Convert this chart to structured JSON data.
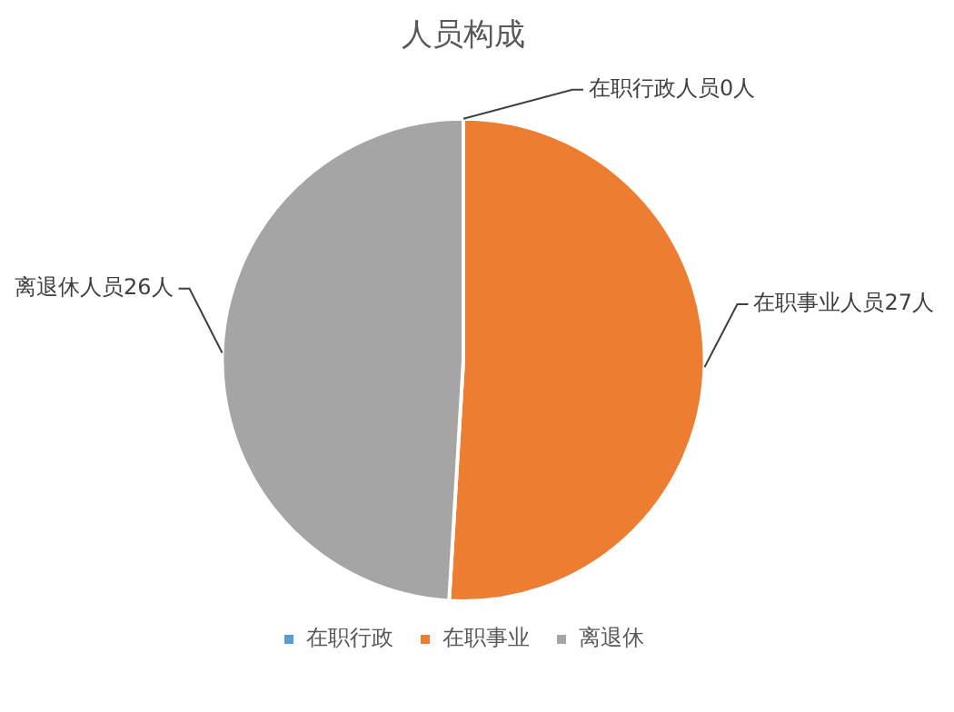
{
  "chart_data": {
    "type": "pie",
    "title": "人员构成",
    "categories": [
      "在职行政",
      "在职事业",
      "离退休"
    ],
    "values": [
      0,
      27,
      26
    ],
    "colors": [
      "#5b9bd5",
      "#ed7d31",
      "#a5a5a5"
    ],
    "value_labels": [
      "在职行政人员0人",
      "在职事业人员27人",
      "离退休人员26人"
    ],
    "legend": "bottom"
  }
}
